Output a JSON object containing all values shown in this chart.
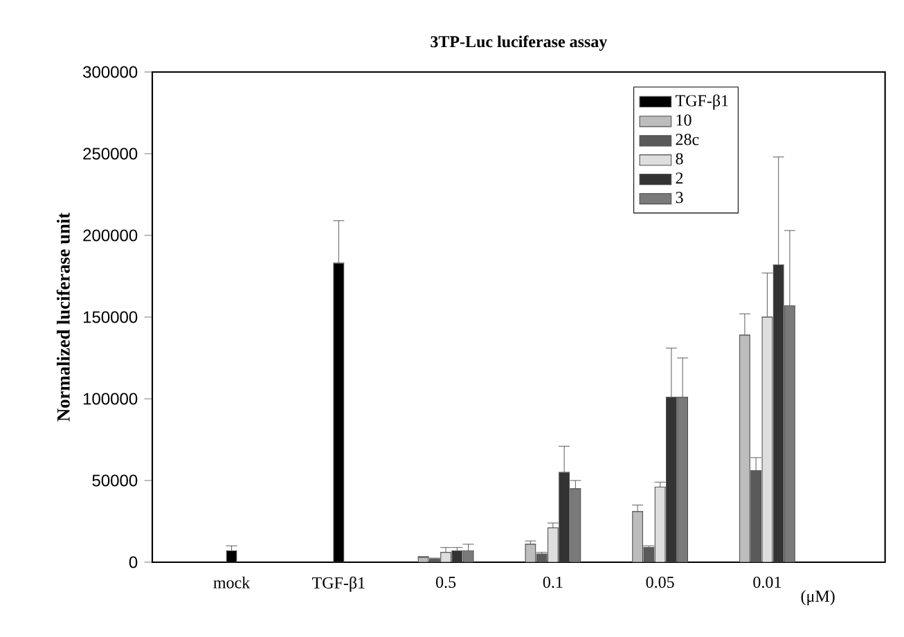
{
  "chart_data": {
    "type": "bar",
    "title": "3TP-Luc luciferase assay",
    "ylabel": "Normalized luciferase unit",
    "xlabel": "(μM)",
    "categories": [
      "mock",
      "TGF-β1",
      "0.5",
      "0.1",
      "0.05",
      "0.01"
    ],
    "series": [
      {
        "name": "TGF-β1",
        "color": "#000000",
        "values": [
          7000,
          183000,
          null,
          null,
          null,
          null
        ],
        "errors": [
          [
            7000,
            10000
          ],
          [
            183000,
            209000
          ],
          null,
          null,
          null,
          null
        ]
      },
      {
        "name": "10",
        "color": "#bdbdbd",
        "values": [
          null,
          null,
          3000,
          11000,
          31000,
          139000
        ],
        "errors": [
          null,
          null,
          [
            3000,
            3500
          ],
          [
            11000,
            13000
          ],
          [
            31000,
            35000
          ],
          [
            139000,
            152000
          ]
        ]
      },
      {
        "name": "28c",
        "color": "#5a5a5a",
        "values": [
          null,
          null,
          2000,
          5000,
          9000,
          56000
        ],
        "errors": [
          null,
          null,
          [
            2000,
            2500
          ],
          [
            5000,
            6000
          ],
          [
            9000,
            10000
          ],
          [
            56000,
            64000
          ]
        ]
      },
      {
        "name": "8",
        "color": "#dedede",
        "values": [
          null,
          null,
          6000,
          21000,
          46000,
          150000
        ],
        "errors": [
          null,
          null,
          [
            6000,
            9000
          ],
          [
            21000,
            24000
          ],
          [
            46000,
            49000
          ],
          [
            150000,
            177000
          ]
        ]
      },
      {
        "name": "2",
        "color": "#333333",
        "values": [
          null,
          null,
          7000,
          55000,
          101000,
          182000
        ],
        "errors": [
          null,
          null,
          [
            7000,
            9000
          ],
          [
            55000,
            71000
          ],
          [
            101000,
            131000
          ],
          [
            182000,
            248000
          ]
        ]
      },
      {
        "name": "3",
        "color": "#7a7a7a",
        "values": [
          null,
          null,
          7000,
          45000,
          101000,
          157000
        ],
        "errors": [
          null,
          null,
          [
            7000,
            11000
          ],
          [
            45000,
            50000
          ],
          [
            101000,
            125000
          ],
          [
            157000,
            203000
          ]
        ]
      }
    ],
    "ylim": [
      0,
      300000
    ],
    "yticks": [
      0,
      50000,
      100000,
      150000,
      200000,
      250000,
      300000
    ],
    "legend": "top right",
    "grid": false
  }
}
